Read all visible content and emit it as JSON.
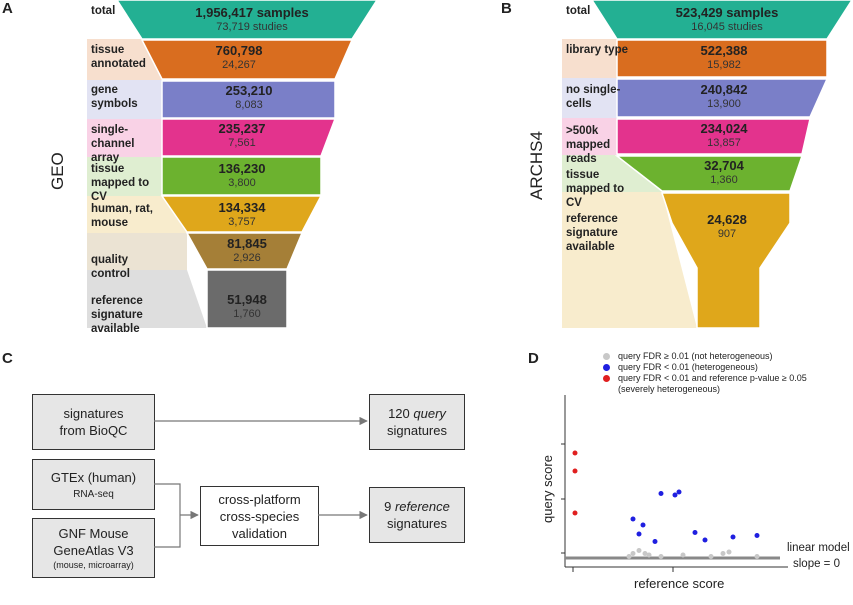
{
  "panels": {
    "a": {
      "letter": "A",
      "side_label": "GEO",
      "stages": [
        {
          "label": "total",
          "big": "1,956,417 samples",
          "small": "73,719 studies",
          "color": "#23b093"
        },
        {
          "label": "tissue annotated",
          "big": "760,798",
          "small": "24,267",
          "color": "#d96d1f"
        },
        {
          "label": "gene symbols",
          "big": "253,210",
          "small": "8,083",
          "color": "#7a7fc8"
        },
        {
          "label": "single-channel array",
          "big": "235,237",
          "small": "7,561",
          "color": "#e3338d"
        },
        {
          "label": "tissue mapped to CV",
          "big": "136,230",
          "small": "3,800",
          "color": "#6cb22f"
        },
        {
          "label": "human, rat, mouse",
          "big": "134,334",
          "small": "3,757",
          "color": "#dfa71b"
        },
        {
          "label": "quality control",
          "big": "81,845",
          "small": "2,926",
          "color": "#a57f37"
        },
        {
          "label": "reference signature available",
          "big": "51,948",
          "small": "1,760",
          "color": "#6b6b6b"
        }
      ]
    },
    "b": {
      "letter": "B",
      "side_label": "ARCHS4",
      "stages": [
        {
          "label": "total",
          "big": "523,429 samples",
          "small": "16,045 studies",
          "color": "#23b093"
        },
        {
          "label": "library type",
          "big": "522,388",
          "small": "15,982",
          "color": "#d96d1f"
        },
        {
          "label": "no single-cells",
          "big": "240,842",
          "small": "13,900",
          "color": "#7a7fc8"
        },
        {
          "label": ">500k mapped reads",
          "big": "234,024",
          "small": "13,857",
          "color": "#e3338d"
        },
        {
          "label": "tissue mapped to CV",
          "big": "32,704",
          "small": "1,360",
          "color": "#6cb22f"
        },
        {
          "label": "reference signature available",
          "big": "24,628",
          "small": "907",
          "color": "#dfa71b"
        }
      ]
    },
    "c": {
      "letter": "C",
      "bioqc": [
        "signatures",
        "from BioQC"
      ],
      "gtex": "GTEx (human)",
      "gtex_sub": "RNA-seq",
      "gnf": [
        "GNF Mouse",
        "GeneAtlas V3"
      ],
      "gnf_sub": "(mouse, microarray)",
      "validation": [
        "cross-platform",
        "cross-species",
        "validation"
      ],
      "query_num": "120 ",
      "query_word": "query",
      "query_rest": "signatures",
      "ref_num": "9 ",
      "ref_word": "reference",
      "ref_rest": "signatures"
    },
    "d": {
      "letter": "D",
      "legend": [
        {
          "text": "query FDR ≥ 0.01 (not heterogeneous)",
          "color": "#c8c8c8"
        },
        {
          "text": "query FDR < 0.01 (heterogeneous)",
          "color": "#1f1fe0"
        },
        {
          "text": "query FDR < 0.01 and reference p-value ≥ 0.05",
          "color": "#e01f1f"
        },
        {
          "text": "(severely heterogeneous)",
          "color": ""
        }
      ],
      "xlabel": "reference score",
      "ylabel": "query score",
      "line_label_1": "linear model",
      "line_label_2": "slope = 0"
    }
  },
  "chart_data": {
    "type": "scatter",
    "title": "",
    "xlabel": "reference score",
    "ylabel": "query score",
    "xlim": [
      0,
      10
    ],
    "ylim": [
      0,
      10
    ],
    "annotations": [
      "linear model",
      "slope = 0"
    ],
    "series": [
      {
        "name": "query FDR ≥ 0.01 (not heterogeneous)",
        "color": "#c8c8c8",
        "points": [
          [
            3.0,
            0.3
          ],
          [
            3.3,
            0.5
          ],
          [
            3.6,
            0.3
          ],
          [
            3.8,
            0.2
          ],
          [
            4.4,
            0.1
          ],
          [
            5.5,
            0.2
          ],
          [
            7.5,
            0.3
          ],
          [
            7.8,
            0.4
          ],
          [
            6.9,
            0.1
          ],
          [
            2.8,
            0.1
          ],
          [
            9.2,
            0.1
          ]
        ]
      },
      {
        "name": "query FDR < 0.01 (heterogeneous)",
        "color": "#1f1fe0",
        "points": [
          [
            3.0,
            2.6
          ],
          [
            3.3,
            1.6
          ],
          [
            3.5,
            2.2
          ],
          [
            4.1,
            1.1
          ],
          [
            4.4,
            4.3
          ],
          [
            5.1,
            4.2
          ],
          [
            5.3,
            4.4
          ],
          [
            6.1,
            1.7
          ],
          [
            6.6,
            1.2
          ],
          [
            8.0,
            1.4
          ],
          [
            9.2,
            1.5
          ]
        ]
      },
      {
        "name": "query FDR < 0.01 and reference p-value ≥ 0.05 (severely heterogeneous)",
        "color": "#e01f1f",
        "points": [
          [
            0.1,
            7.0
          ],
          [
            0.1,
            5.8
          ],
          [
            0.1,
            3.0
          ]
        ]
      }
    ]
  }
}
